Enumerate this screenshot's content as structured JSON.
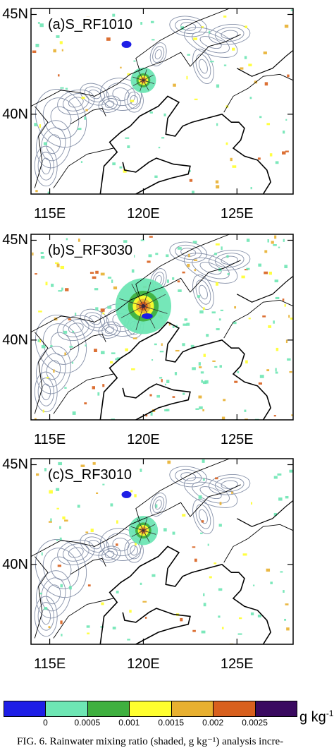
{
  "panels": [
    {
      "title": "(a)S_RF1010",
      "intensity": 1.0,
      "neg_blob": "north"
    },
    {
      "title": "(b)S_RF3030",
      "intensity": 2.2,
      "neg_blob": "center"
    },
    {
      "title": "(c)S_RF3010",
      "intensity": 1.15,
      "neg_blob": "north"
    }
  ],
  "axes": {
    "lat_labels": [
      "45N",
      "40N"
    ],
    "lon_labels": [
      "115E",
      "120E",
      "125E"
    ]
  },
  "colorbar": {
    "unit": "g kg",
    "unit_sup": "-1",
    "ticks": [
      "0",
      "0.0005",
      "0.001",
      "0.0015",
      "0.002",
      "0.0025"
    ],
    "colors": [
      "#1e1ee6",
      "#6ee6b4",
      "#3fb03f",
      "#ffff2e",
      "#e8b030",
      "#d8601e",
      "#3a0a60"
    ]
  },
  "caption": "FIG. 6. Rainwater mixing ratio (shaded, g kg⁻¹) analysis incre-"
}
